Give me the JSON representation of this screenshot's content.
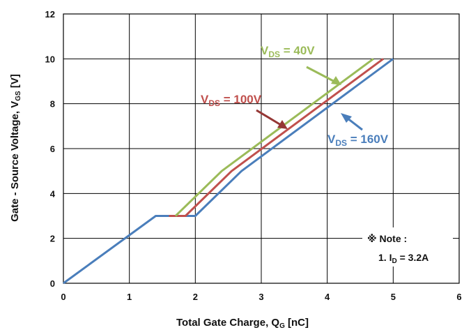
{
  "chart_data": {
    "type": "line",
    "xlabel_main": "Total Gate Charge, Q",
    "xlabel_sub": "G",
    "xlabel_unit": " [nC]",
    "ylabel_main": "Gate - Source Voltage, V",
    "ylabel_sub": "GS",
    "ylabel_unit": " [V]",
    "xlim": [
      0,
      6
    ],
    "ylim": [
      0,
      12
    ],
    "xticks": [
      "0",
      "1",
      "2",
      "3",
      "4",
      "5",
      "6"
    ],
    "yticks": [
      "0",
      "2",
      "4",
      "6",
      "8",
      "10",
      "12"
    ],
    "grid": true,
    "series": [
      {
        "name": "VDS = 160V",
        "color": "#4a7ebb",
        "x": [
          0,
          1.4,
          2.0,
          2.7,
          5.0
        ],
        "y": [
          0,
          3.0,
          3.0,
          5.0,
          10.0
        ]
      },
      {
        "name": "VDS = 100V",
        "color": "#c0504d",
        "x": [
          1.6,
          1.85,
          2.55,
          4.85
        ],
        "y": [
          3.0,
          3.0,
          5.0,
          10.0
        ]
      },
      {
        "name": "VDS = 40V",
        "color": "#9bbb59",
        "x": [
          1.7,
          2.4,
          4.7
        ],
        "y": [
          3.0,
          5.0,
          10.0
        ]
      }
    ],
    "annotations": [
      {
        "main": "V",
        "sub": "DS",
        "rest": " = 40V",
        "color": "#9bbb59"
      },
      {
        "main": "V",
        "sub": "DS",
        "rest": " = 100V",
        "color": "#c0504d"
      },
      {
        "main": "V",
        "sub": "DS",
        "rest": " = 160V",
        "color": "#4a7ebb"
      }
    ],
    "note": {
      "title": "※ Note :",
      "line_prefix": "1. I",
      "line_sub": "D",
      "line_rest": " = 3.2A"
    }
  }
}
